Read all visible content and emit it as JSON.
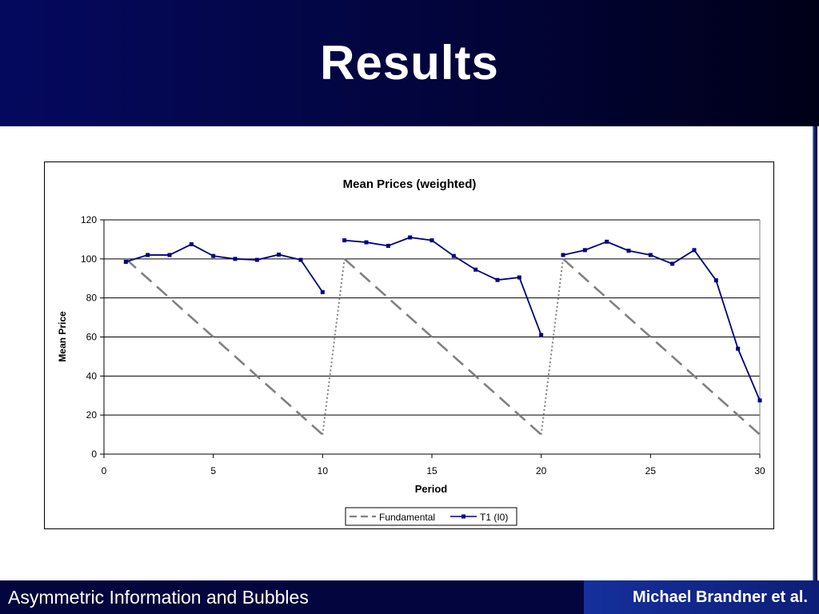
{
  "slide": {
    "title": "Results",
    "footer_left": "Asymmetric Information and Bubbles",
    "footer_right": "Michael Brandner et al."
  },
  "chart_data": {
    "type": "line",
    "title": "Mean Prices (weighted)",
    "xlabel": "Period",
    "ylabel": "Mean Price",
    "xlim": [
      0,
      30
    ],
    "ylim": [
      0,
      120
    ],
    "xticks": [
      0,
      5,
      10,
      15,
      20,
      25,
      30
    ],
    "yticks": [
      0,
      20,
      40,
      60,
      80,
      100,
      120
    ],
    "grid": "horizontal",
    "legend_position": "bottom",
    "series": [
      {
        "name": "Fundamental",
        "color": "#808080",
        "style": "dashed",
        "segments": [
          {
            "x": [
              1,
              10
            ],
            "y": [
              100,
              10
            ]
          },
          {
            "x": [
              11,
              20
            ],
            "y": [
              100,
              10
            ]
          },
          {
            "x": [
              21,
              30
            ],
            "y": [
              100,
              10
            ]
          }
        ],
        "connectors": [
          {
            "x": [
              10,
              11
            ],
            "y": [
              10,
              100
            ]
          },
          {
            "x": [
              20,
              21
            ],
            "y": [
              10,
              100
            ]
          }
        ]
      },
      {
        "name": "T1 (I0)",
        "color": "#000080",
        "style": "solid-markers",
        "segments": [
          {
            "x": [
              1,
              2,
              3,
              4,
              5,
              6,
              7,
              8,
              9,
              10
            ],
            "y": [
              98.5,
              102,
              102,
              107.5,
              101.5,
              100,
              99.5,
              102.2,
              99.5,
              83
            ]
          },
          {
            "x": [
              11,
              12,
              13,
              14,
              15,
              16,
              17,
              18,
              19,
              20
            ],
            "y": [
              109.5,
              108.5,
              106.7,
              111,
              109.5,
              101.5,
              94.5,
              89.2,
              90.5,
              61
            ]
          },
          {
            "x": [
              21,
              22,
              23,
              24,
              25,
              26,
              27,
              28,
              29,
              30
            ],
            "y": [
              102,
              104.5,
              108.8,
              104.2,
              102,
              97.5,
              104.5,
              89,
              54,
              27.5
            ]
          }
        ]
      }
    ]
  }
}
